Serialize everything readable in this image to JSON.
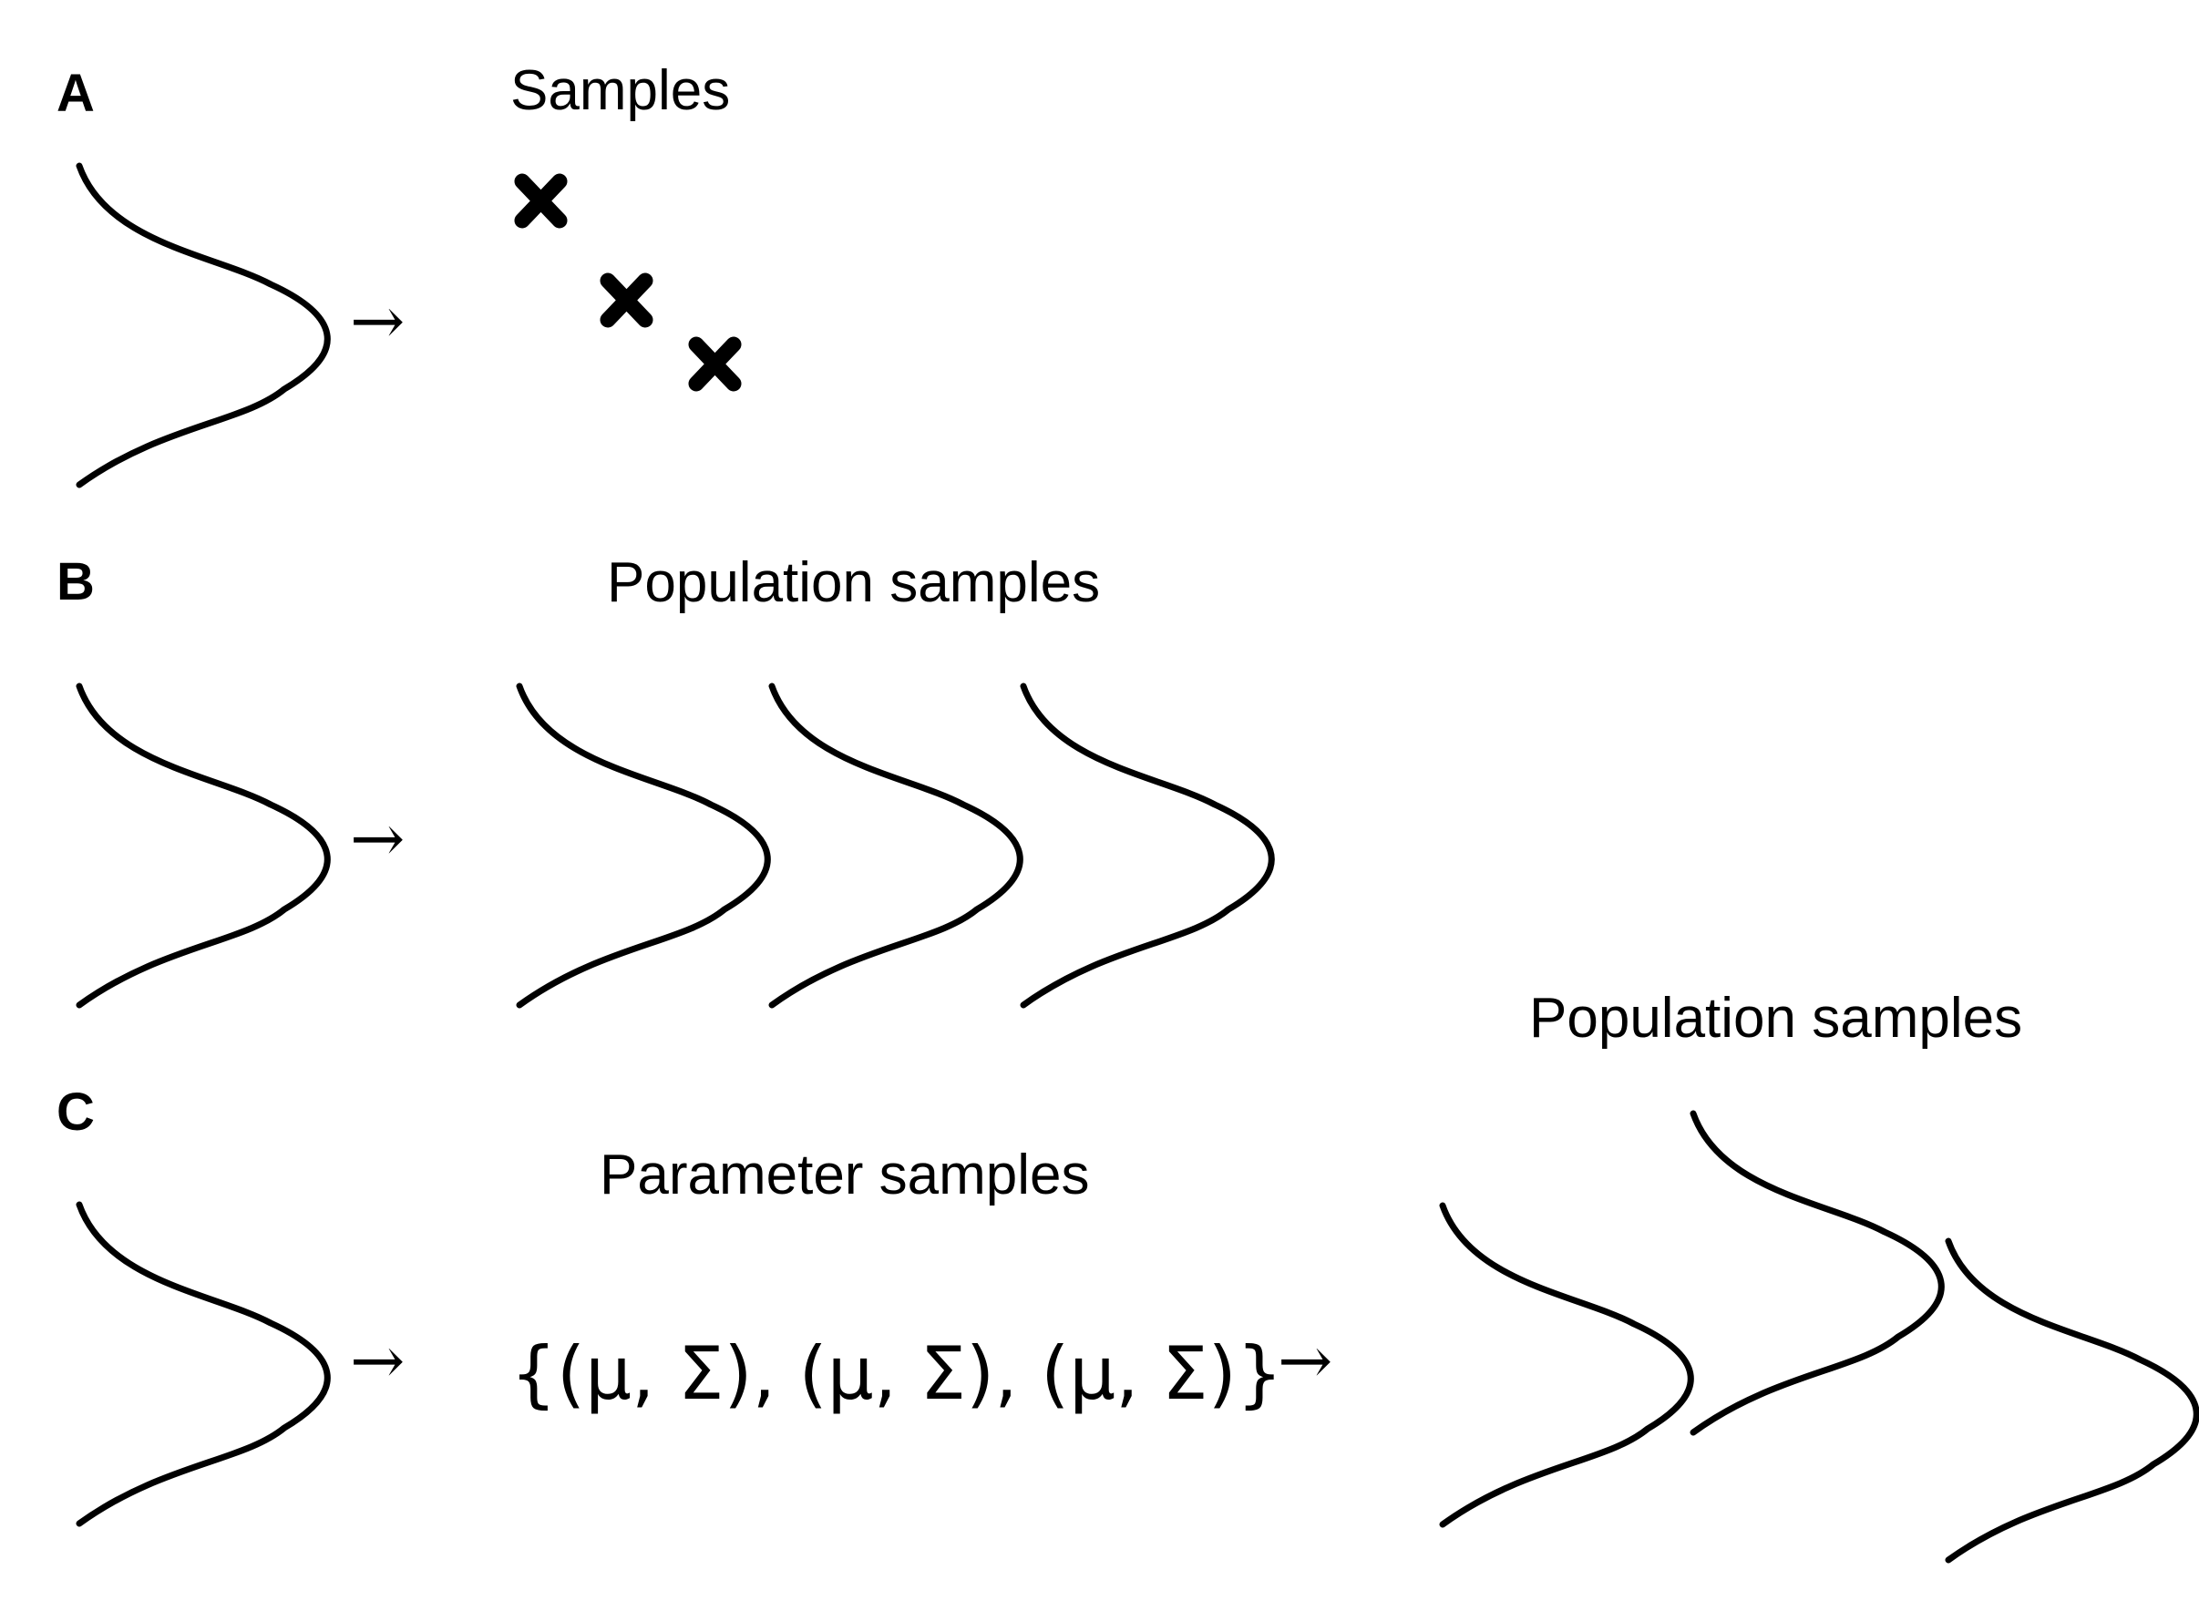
{
  "panels": {
    "a": {
      "letter": "A",
      "caption": "Samples"
    },
    "b": {
      "letter": "B",
      "caption": "Population samples"
    },
    "c": {
      "letter": "C",
      "caption_params": "Parameter samples",
      "params_text": "{(μ, Σ), (μ, Σ), (μ, Σ)}",
      "caption_populations": "Population samples"
    }
  },
  "arrow_glyph": "→"
}
